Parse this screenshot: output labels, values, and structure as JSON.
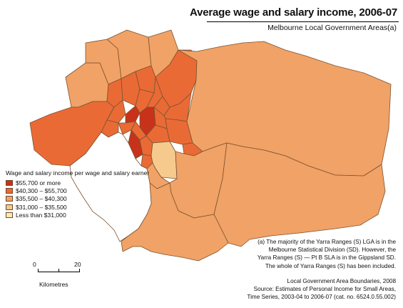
{
  "title": "Average wage and salary income, 2006-07",
  "subtitle": "Melbourne Local Government Areas(a)",
  "legend": {
    "title": "Wage and salary income per wage and salary earner",
    "classes": [
      {
        "label": "$55,700 or more",
        "color": "#c8321a"
      },
      {
        "label": "$40,300 – $55,700",
        "color": "#ea6a35"
      },
      {
        "label": "$35,500 – $40,300",
        "color": "#f1a266"
      },
      {
        "label": "$31,000 – $35,500",
        "color": "#f6c98d"
      },
      {
        "label": "Less than $31,000",
        "color": "#fbeab2"
      }
    ]
  },
  "scale_bar": {
    "start": "0",
    "end": "20",
    "unit": "Kilometres"
  },
  "note": {
    "line1": "(a) The majority of the Yarra Ranges (S) LGA is in the",
    "line2": "Melbourne Statistical Division (SD). However, the",
    "line3": "Yarra Ranges (S) — Pt B SLA is in the Gippsland SD.",
    "line4": "The whole of Yarra Ranges (S) has been included."
  },
  "source": {
    "line1": "Local Government Area Boundaries, 2008",
    "line2": "Source: Estimates of Personal Income for Small Areas,",
    "line3": "Time Series, 2003-04 to 2006-07 (cat. no. 6524.0.55.002)"
  },
  "colors": {
    "border": "#7a5230",
    "water": "#ffffff"
  }
}
